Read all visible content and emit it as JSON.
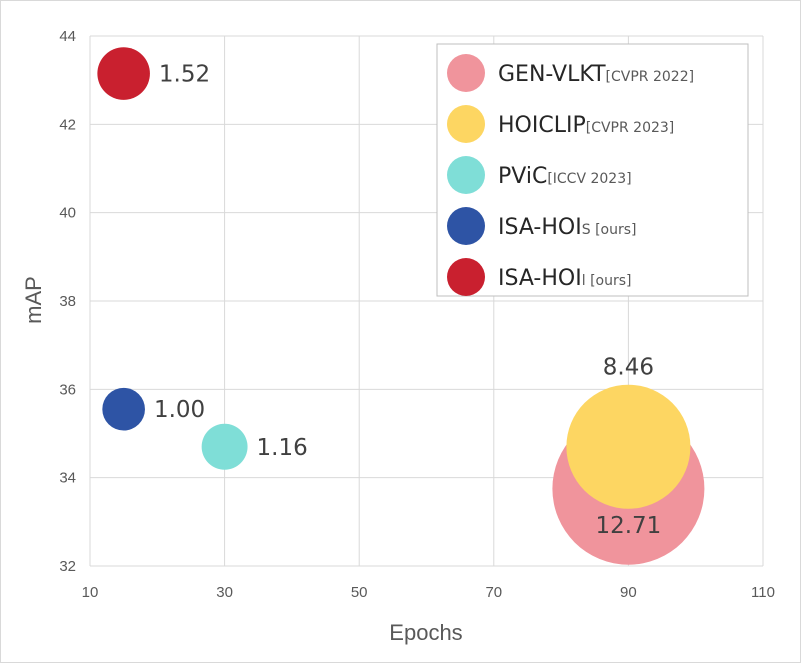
{
  "chart_data": {
    "type": "scatter",
    "xlabel": "Epochs",
    "ylabel": "mAP",
    "xlim": [
      10,
      110
    ],
    "ylim": [
      32,
      44
    ],
    "xticks": [
      10,
      30,
      50,
      70,
      90,
      110
    ],
    "yticks": [
      32,
      34,
      36,
      38,
      40,
      42,
      44
    ],
    "grid": true,
    "legend_position": "top-right",
    "series": [
      {
        "name": "GEN-VLKT",
        "venue": "[CVPR 2022]",
        "color": "#f0949c",
        "x": 90,
        "y": 33.75,
        "size": 12.71,
        "label": "12.71"
      },
      {
        "name": "HOICLIP",
        "venue": "[CVPR 2023]",
        "color": "#fdd662",
        "x": 90,
        "y": 34.7,
        "size": 8.46,
        "label": "8.46"
      },
      {
        "name": "PViC",
        "venue": "[ICCV 2023]",
        "color": "#7fded7",
        "x": 30,
        "y": 34.7,
        "size": 1.16,
        "label": "1.16"
      },
      {
        "name": "ISA-HOI",
        "name_sub": "S",
        "venue": "[ours]",
        "color": "#2e54a5",
        "x": 15,
        "y": 35.55,
        "size": 1.0,
        "label": "1.00"
      },
      {
        "name": "ISA-HOI",
        "name_sub": "l",
        "venue": "[ours]",
        "color": "#c9202f",
        "x": 15,
        "y": 43.15,
        "size": 1.52,
        "label": "1.52"
      }
    ]
  }
}
